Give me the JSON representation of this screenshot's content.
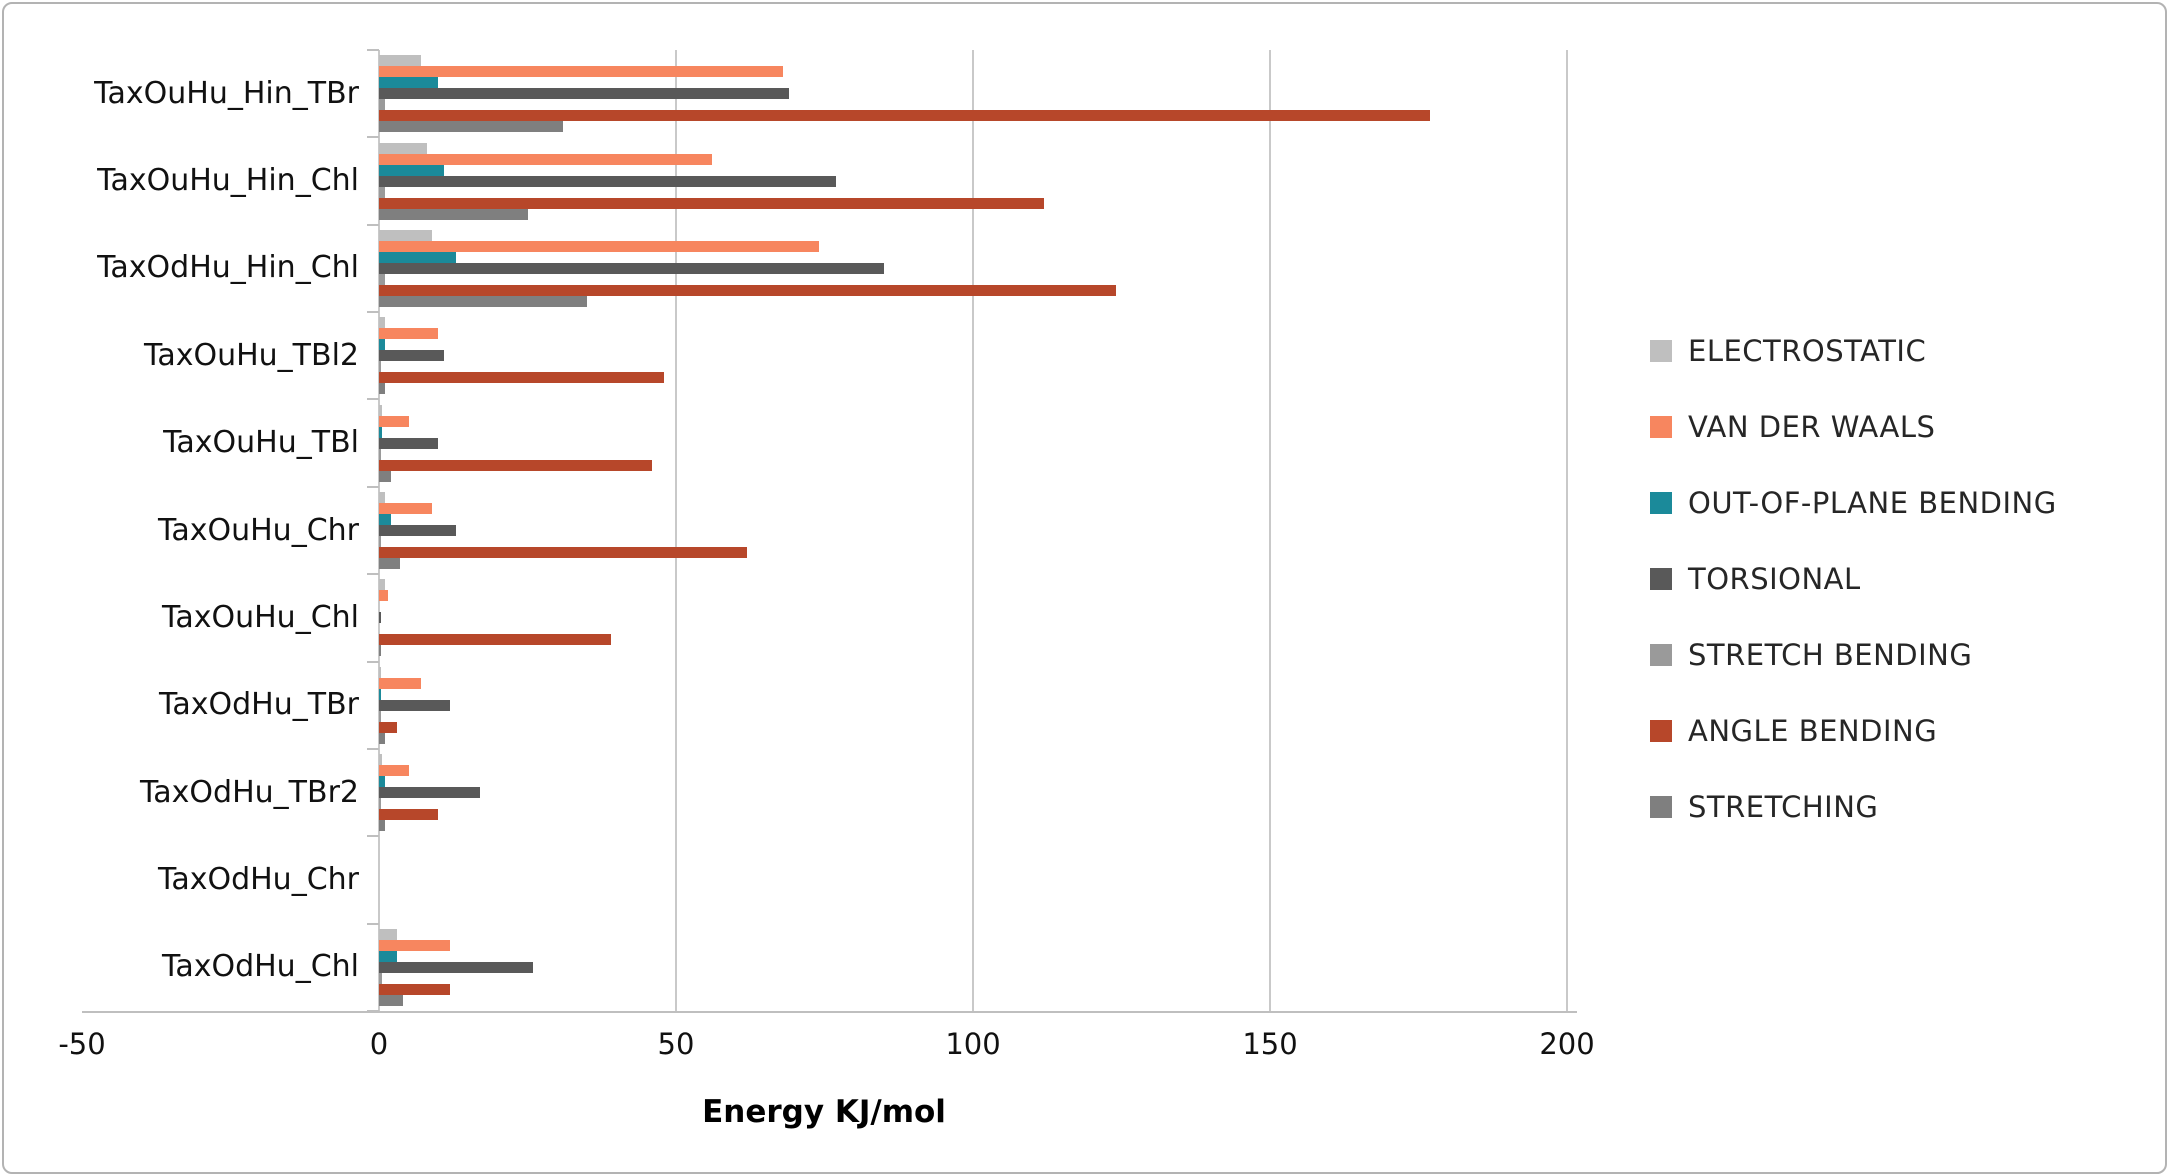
{
  "chart_data": {
    "type": "bar",
    "orientation": "horizontal",
    "title": "",
    "xlabel": "Energy KJ/mol",
    "ylabel": "",
    "xlim": [
      -50,
      200
    ],
    "xticks": [
      -50,
      0,
      50,
      100,
      150,
      200
    ],
    "grid": true,
    "legend_position": "right",
    "categories": [
      "TaxOuHu_Hin_TBr",
      "TaxOuHu_Hin_Chl",
      "TaxOdHu_Hin_Chl",
      "TaxOuHu_TBl2",
      "TaxOuHu_TBl",
      "TaxOuHu_Chr",
      "TaxOuHu_Chl",
      "TaxOdHu_TBr",
      "TaxOdHu_TBr2",
      "TaxOdHu_Chr",
      "TaxOdHu_Chl"
    ],
    "series": [
      {
        "name": "ELECTROSTATIC",
        "color": "#bfbfbf",
        "values": [
          7,
          8,
          9,
          1,
          0.5,
          1,
          1,
          0.3,
          0.5,
          0,
          3
        ]
      },
      {
        "name": "VAN DER WAALS",
        "color": "#f7865f",
        "values": [
          68,
          56,
          74,
          10,
          5,
          9,
          1.5,
          7,
          5,
          0,
          12
        ]
      },
      {
        "name": "OUT-OF-PLANE BENDING",
        "color": "#1b8a9a",
        "values": [
          10,
          11,
          13,
          1,
          0.5,
          2,
          0,
          0.3,
          1,
          0,
          3
        ]
      },
      {
        "name": "TORSIONAL",
        "color": "#595959",
        "values": [
          69,
          77,
          85,
          11,
          10,
          13,
          0.3,
          12,
          17,
          0,
          26
        ]
      },
      {
        "name": "STRETCH BENDING",
        "color": "#9a9a9a",
        "values": [
          1,
          1,
          1,
          0.3,
          0.2,
          0.3,
          0,
          0.2,
          0.3,
          0,
          0.5
        ]
      },
      {
        "name": "ANGLE BENDING",
        "color": "#b7472a",
        "values": [
          177,
          112,
          124,
          48,
          46,
          62,
          39,
          3,
          10,
          0,
          12
        ]
      },
      {
        "name": "STRETCHING",
        "color": "#7f7f7f",
        "values": [
          31,
          25,
          35,
          1,
          2,
          3.5,
          0.3,
          1,
          1,
          0,
          4
        ]
      }
    ]
  }
}
